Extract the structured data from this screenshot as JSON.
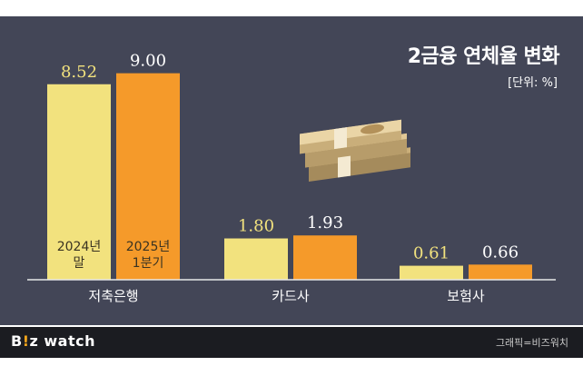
{
  "title": "2금융 연체율 변화",
  "unit": "[단위: %]",
  "chart_data": {
    "type": "bar",
    "categories": [
      "저축은행",
      "카드사",
      "보험사"
    ],
    "series": [
      {
        "name": "2024년 말",
        "values": [
          8.52,
          1.8,
          0.61
        ],
        "color": "#f2e27e",
        "label_color": "#f2e27e"
      },
      {
        "name": "2025년 1분기",
        "values": [
          9.0,
          1.93,
          0.66
        ],
        "color": "#f59a2a",
        "label_color": "#ffffff"
      }
    ],
    "value_labels": [
      [
        "8.52",
        "1.80",
        "0.61"
      ],
      [
        "9.00",
        "1.93",
        "0.66"
      ]
    ],
    "series_inline_labels": [
      [
        "2024년",
        "말"
      ],
      [
        "2025년",
        "1분기"
      ]
    ],
    "ylim": [
      0,
      9.5
    ]
  },
  "footer": {
    "logo_b": "B",
    "logo_mark": "!",
    "logo_rest": "z watch",
    "credit": "그래픽=비즈워치"
  },
  "illustration": "money-bundle-icon"
}
